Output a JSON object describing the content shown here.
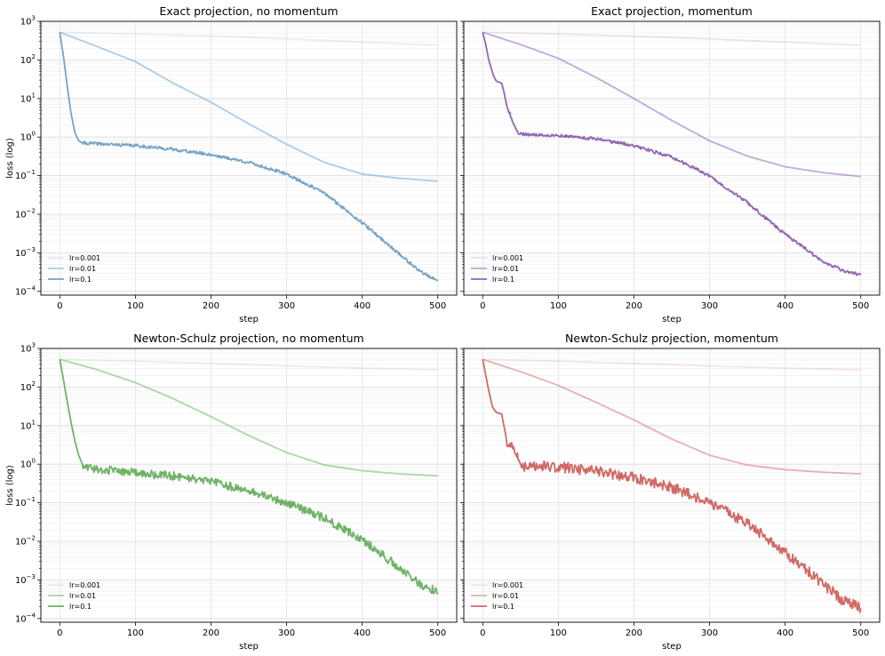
{
  "chart_data": [
    {
      "type": "line",
      "title": "Exact projection, no momentum",
      "xlabel": "step",
      "ylabel": "loss (log)",
      "xlim": [
        -25,
        525
      ],
      "ylim": [
        8e-05,
        1000
      ],
      "yscale": "log",
      "xticks": [
        0,
        100,
        200,
        300,
        400,
        500
      ],
      "xtick_labels": [
        "0",
        "100",
        "200",
        "300",
        "400",
        "500"
      ],
      "ytick_exponents": [
        3,
        2,
        1,
        0,
        -1,
        -2,
        -3,
        -4
      ],
      "grid": true,
      "legend": "lower-left",
      "series": [
        {
          "name": "lr=0.001",
          "color": "#7fb0da",
          "opacity": 0.22,
          "points": [
            [
              0,
              520
            ],
            [
              100,
              470
            ],
            [
              200,
              420
            ],
            [
              300,
              350
            ],
            [
              400,
              290
            ],
            [
              500,
              240
            ]
          ]
        },
        {
          "name": "lr=0.01",
          "color": "#7fb0da",
          "opacity": 0.65,
          "points": [
            [
              0,
              520
            ],
            [
              50,
              220
            ],
            [
              100,
              90
            ],
            [
              150,
              25
            ],
            [
              200,
              8
            ],
            [
              250,
              2.2
            ],
            [
              300,
              0.65
            ],
            [
              350,
              0.22
            ],
            [
              400,
              0.11
            ],
            [
              450,
              0.085
            ],
            [
              500,
              0.072
            ]
          ]
        },
        {
          "name": "lr=0.1",
          "color": "#4a86b4",
          "opacity": 0.75,
          "noise": 0.04,
          "points": [
            [
              0,
              520
            ],
            [
              5,
              120
            ],
            [
              10,
              20
            ],
            [
              15,
              4
            ],
            [
              20,
              1.3
            ],
            [
              25,
              0.8
            ],
            [
              30,
              0.7
            ],
            [
              100,
              0.6
            ],
            [
              150,
              0.48
            ],
            [
              200,
              0.35
            ],
            [
              250,
              0.22
            ],
            [
              300,
              0.11
            ],
            [
              350,
              0.035
            ],
            [
              400,
              0.006
            ],
            [
              450,
              0.0009
            ],
            [
              475,
              0.00035
            ],
            [
              500,
              0.00018
            ]
          ]
        }
      ]
    },
    {
      "type": "line",
      "title": "Exact projection, momentum",
      "xlabel": "step",
      "ylabel": "",
      "xlim": [
        -25,
        525
      ],
      "ylim": [
        8e-05,
        1000
      ],
      "yscale": "log",
      "xticks": [
        0,
        100,
        200,
        300,
        400,
        500
      ],
      "xtick_labels": [
        "0",
        "100",
        "200",
        "300",
        "400",
        "500"
      ],
      "ytick_exponents": [
        3,
        2,
        1,
        0,
        -1,
        -2,
        -3,
        -4
      ],
      "grid": true,
      "legend": "lower-left",
      "series": [
        {
          "name": "lr=0.001",
          "color": "#b49ad2",
          "opacity": 0.28,
          "points": [
            [
              0,
              520
            ],
            [
              100,
              470
            ],
            [
              200,
              410
            ],
            [
              300,
              350
            ],
            [
              400,
              290
            ],
            [
              500,
              240
            ]
          ]
        },
        {
          "name": "lr=0.01",
          "color": "#a07cc5",
          "opacity": 0.65,
          "points": [
            [
              0,
              520
            ],
            [
              50,
              250
            ],
            [
              100,
              110
            ],
            [
              150,
              35
            ],
            [
              200,
              10
            ],
            [
              250,
              2.7
            ],
            [
              300,
              0.8
            ],
            [
              350,
              0.32
            ],
            [
              400,
              0.17
            ],
            [
              450,
              0.12
            ],
            [
              500,
              0.095
            ]
          ]
        },
        {
          "name": "lr=0.1",
          "color": "#8456a8",
          "opacity": 0.9,
          "noise": 0.04,
          "points": [
            [
              0,
              520
            ],
            [
              4,
              250
            ],
            [
              8,
              100
            ],
            [
              14,
              40
            ],
            [
              18,
              28
            ],
            [
              25,
              25
            ],
            [
              28,
              15
            ],
            [
              32,
              6
            ],
            [
              36,
              4
            ],
            [
              40,
              2.5
            ],
            [
              45,
              1.4
            ],
            [
              50,
              1.2
            ],
            [
              100,
              1.1
            ],
            [
              150,
              0.9
            ],
            [
              200,
              0.6
            ],
            [
              250,
              0.3
            ],
            [
              300,
              0.1
            ],
            [
              350,
              0.02
            ],
            [
              400,
              0.003
            ],
            [
              450,
              0.0006
            ],
            [
              475,
              0.00035
            ],
            [
              500,
              0.00027
            ]
          ]
        }
      ]
    },
    {
      "type": "line",
      "title": "Newton-Schulz projection, no momentum",
      "xlabel": "step",
      "ylabel": "loss (log)",
      "xlim": [
        -25,
        525
      ],
      "ylim": [
        8e-05,
        1000
      ],
      "yscale": "log",
      "xticks": [
        0,
        100,
        200,
        300,
        400,
        500
      ],
      "xtick_labels": [
        "0",
        "100",
        "200",
        "300",
        "400",
        "500"
      ],
      "ytick_exponents": [
        3,
        2,
        1,
        0,
        -1,
        -2,
        -3,
        -4
      ],
      "grid": true,
      "legend": "lower-left",
      "series": [
        {
          "name": "lr=0.001",
          "color": "#8fcc8a",
          "opacity": 0.25,
          "points": [
            [
              0,
              520
            ],
            [
              100,
              470
            ],
            [
              200,
              410
            ],
            [
              300,
              350
            ],
            [
              400,
              310
            ],
            [
              500,
              280
            ]
          ]
        },
        {
          "name": "lr=0.01",
          "color": "#74bd6d",
          "opacity": 0.6,
          "points": [
            [
              0,
              520
            ],
            [
              50,
              280
            ],
            [
              100,
              130
            ],
            [
              150,
              50
            ],
            [
              200,
              17
            ],
            [
              250,
              5.5
            ],
            [
              300,
              2.0
            ],
            [
              350,
              0.95
            ],
            [
              400,
              0.68
            ],
            [
              450,
              0.56
            ],
            [
              500,
              0.5
            ]
          ]
        },
        {
          "name": "lr=0.1",
          "color": "#56a64d",
          "opacity": 0.85,
          "noise": 0.11,
          "points": [
            [
              0,
              520
            ],
            [
              5,
              150
            ],
            [
              10,
              40
            ],
            [
              15,
              12
            ],
            [
              20,
              4
            ],
            [
              25,
              1.7
            ],
            [
              30,
              1.0
            ],
            [
              40,
              0.8
            ],
            [
              100,
              0.6
            ],
            [
              150,
              0.5
            ],
            [
              200,
              0.35
            ],
            [
              250,
              0.2
            ],
            [
              300,
              0.1
            ],
            [
              350,
              0.04
            ],
            [
              400,
              0.011
            ],
            [
              450,
              0.002
            ],
            [
              475,
              0.0008
            ],
            [
              500,
              0.0005
            ]
          ]
        }
      ]
    },
    {
      "type": "line",
      "title": "Newton-Schulz projection, momentum",
      "xlabel": "step",
      "ylabel": "",
      "xlim": [
        -25,
        525
      ],
      "ylim": [
        8e-05,
        1000
      ],
      "yscale": "log",
      "xticks": [
        0,
        100,
        200,
        300,
        400,
        500
      ],
      "xtick_labels": [
        "0",
        "100",
        "200",
        "300",
        "400",
        "500"
      ],
      "ytick_exponents": [
        3,
        2,
        1,
        0,
        -1,
        -2,
        -3,
        -4
      ],
      "grid": true,
      "legend": "lower-left",
      "series": [
        {
          "name": "lr=0.001",
          "color": "#e69a9a",
          "opacity": 0.28,
          "points": [
            [
              0,
              520
            ],
            [
              100,
              470
            ],
            [
              200,
              410
            ],
            [
              300,
              350
            ],
            [
              400,
              310
            ],
            [
              500,
              280
            ]
          ]
        },
        {
          "name": "lr=0.01",
          "color": "#dc7b7b",
          "opacity": 0.6,
          "points": [
            [
              0,
              520
            ],
            [
              50,
              250
            ],
            [
              100,
              110
            ],
            [
              150,
              40
            ],
            [
              200,
              14
            ],
            [
              250,
              4.5
            ],
            [
              300,
              1.7
            ],
            [
              350,
              0.95
            ],
            [
              400,
              0.72
            ],
            [
              450,
              0.62
            ],
            [
              500,
              0.56
            ]
          ]
        },
        {
          "name": "lr=0.1",
          "color": "#c9504c",
          "opacity": 0.85,
          "noise": 0.14,
          "points": [
            [
              0,
              520
            ],
            [
              4,
              200
            ],
            [
              8,
              80
            ],
            [
              13,
              30
            ],
            [
              18,
              22
            ],
            [
              25,
              20
            ],
            [
              28,
              10
            ],
            [
              32,
              4
            ],
            [
              37,
              3.5
            ],
            [
              42,
              2.5
            ],
            [
              47,
              1.3
            ],
            [
              55,
              0.9
            ],
            [
              100,
              0.85
            ],
            [
              150,
              0.65
            ],
            [
              200,
              0.45
            ],
            [
              250,
              0.25
            ],
            [
              300,
              0.1
            ],
            [
              350,
              0.03
            ],
            [
              400,
              0.005
            ],
            [
              450,
              0.0008
            ],
            [
              475,
              0.0003
            ],
            [
              500,
              0.00019
            ]
          ]
        }
      ]
    }
  ]
}
